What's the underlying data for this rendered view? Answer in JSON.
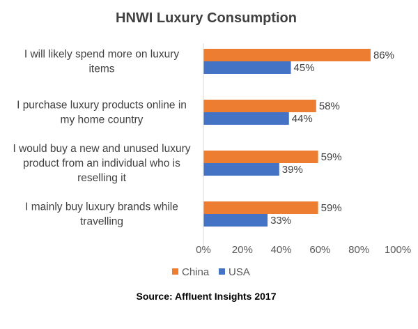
{
  "chart_data": {
    "type": "bar",
    "orientation": "horizontal",
    "title": "HNWI  Luxury Consumption",
    "categories": [
      [
        "I will likely spend more on luxury",
        "items"
      ],
      [
        "I purchase luxury products online in",
        "my home country"
      ],
      [
        "I would buy a new and unused luxury",
        "product from an individual who is",
        "reselling it"
      ],
      [
        "I mainly buy luxury brands while",
        "travelling"
      ]
    ],
    "series": [
      {
        "name": "China",
        "color": "#ED7D31",
        "values": [
          86,
          58,
          59,
          59
        ]
      },
      {
        "name": "USA",
        "color": "#4472C4",
        "values": [
          45,
          44,
          39,
          33
        ]
      }
    ],
    "xlim": [
      0,
      100
    ],
    "xticks": [
      "0%",
      "20%",
      "40%",
      "60%",
      "80%",
      "100%"
    ],
    "value_suffix": "%",
    "grid": false,
    "legend": "bottom",
    "source": "Source: Affluent Insights 2017"
  }
}
